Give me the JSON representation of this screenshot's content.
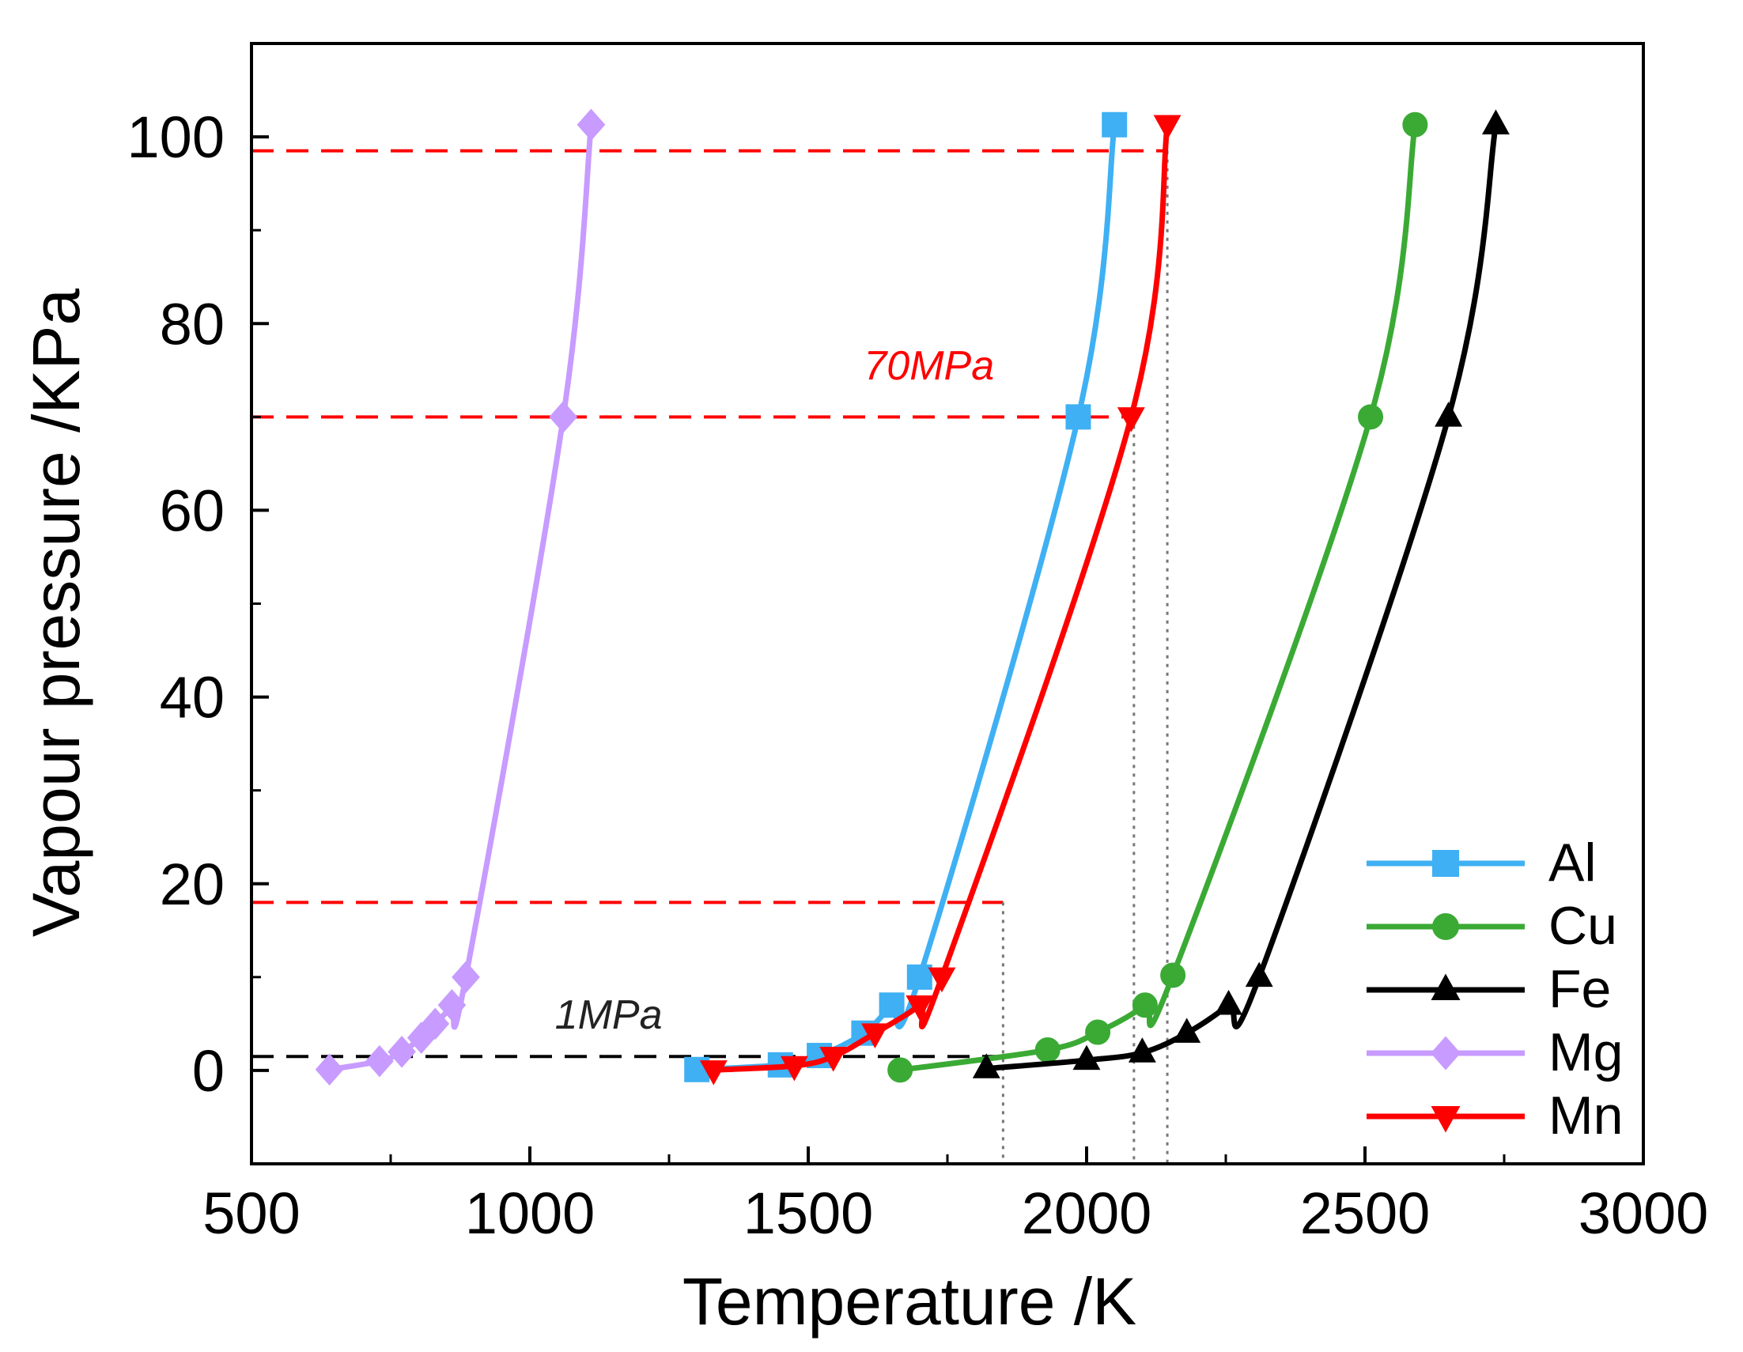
{
  "chart_data": {
    "type": "line",
    "title": "",
    "xlabel": "Temperature /K",
    "ylabel": "Vapour pressure /KPa",
    "xlim": [
      500,
      3000
    ],
    "ylim": [
      -10,
      110
    ],
    "xticks": [
      500,
      1000,
      1500,
      2000,
      2500,
      3000
    ],
    "yticks": [
      0,
      20,
      40,
      60,
      80,
      100
    ],
    "grid": false,
    "legend": "bottom-right",
    "series": [
      {
        "name": "Al",
        "color": "#3fb0f3",
        "marker": "square",
        "x": [
          1300,
          1450,
          1520,
          1600,
          1650,
          1700,
          1985,
          2050
        ],
        "y": [
          0.1,
          0.6,
          1.6,
          4,
          7,
          10,
          70,
          101.3
        ]
      },
      {
        "name": "Cu",
        "color": "#3aaa35",
        "marker": "circle",
        "x": [
          1665,
          1930,
          2020,
          2105,
          2155,
          2510,
          2590
        ],
        "y": [
          0.05,
          2.2,
          4.1,
          7,
          10.2,
          70,
          101.3
        ]
      },
      {
        "name": "Fe",
        "color": "#000000",
        "marker": "triangle-up",
        "x": [
          1820,
          2000,
          2100,
          2180,
          2255,
          2310,
          2650,
          2735
        ],
        "y": [
          0.2,
          1.1,
          1.9,
          4,
          7,
          10,
          70,
          101.3
        ]
      },
      {
        "name": "Mg",
        "color": "#c79bff",
        "marker": "diamond",
        "x": [
          640,
          730,
          770,
          805,
          830,
          860,
          885,
          1060,
          1110
        ],
        "y": [
          0.1,
          1,
          2,
          3.5,
          5,
          7,
          10,
          70,
          101.3
        ]
      },
      {
        "name": "Mn",
        "color": "#ff0000",
        "marker": "triangle-down",
        "x": [
          1330,
          1475,
          1545,
          1620,
          1700,
          1740,
          2080,
          2145
        ],
        "y": [
          0.05,
          0.5,
          1.5,
          4,
          7,
          10,
          70,
          101.3
        ]
      }
    ],
    "reference_lines": [
      {
        "y": 98.5,
        "x_end": 2145,
        "color": "#ff0000"
      },
      {
        "y": 70,
        "x_end": 2085,
        "color": "#ff0000"
      },
      {
        "y": 18,
        "x_end": 1850,
        "color": "#ff0000"
      },
      {
        "y": 1.5,
        "x_end": 1850,
        "color": "#000000"
      }
    ],
    "vertical_lines": [
      {
        "x": 1850,
        "y_top": 18
      },
      {
        "x": 2085,
        "y_top": 70
      },
      {
        "x": 2145,
        "y_top": 98.5
      }
    ],
    "annotations": [
      {
        "text": "70MPa",
        "x": 1600,
        "y": 74,
        "color": "#ff0000"
      },
      {
        "text": "1MPa",
        "x": 1045,
        "y": 4.5,
        "color": "#222222"
      }
    ]
  }
}
